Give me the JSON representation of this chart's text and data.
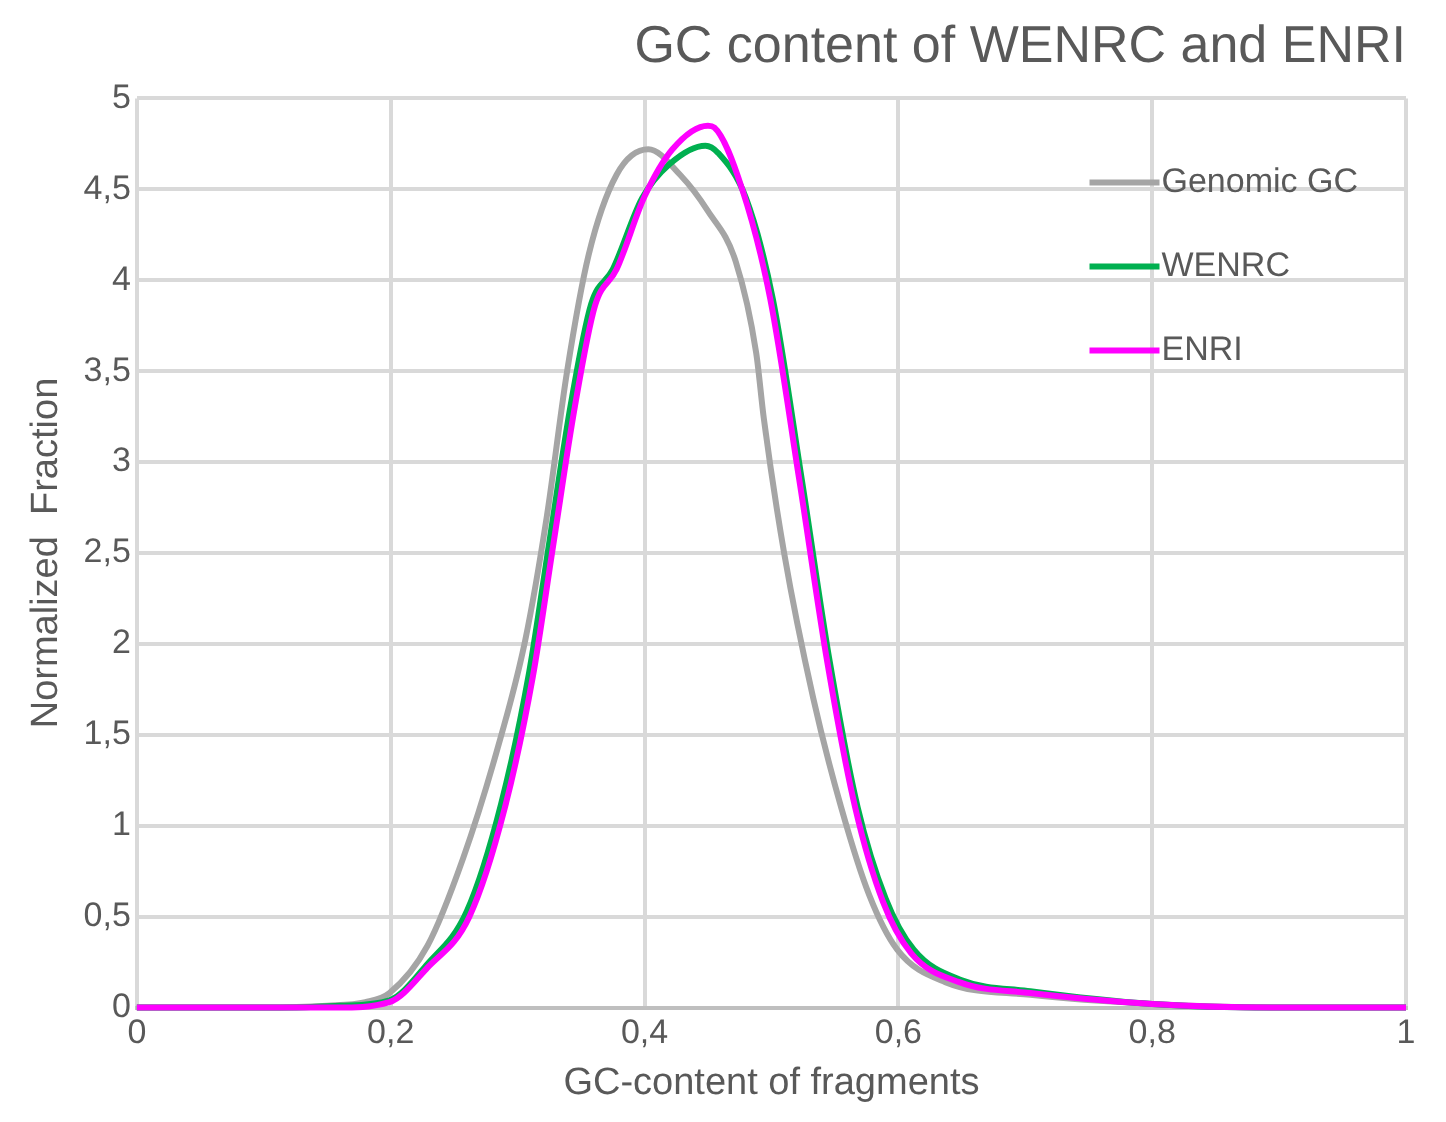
{
  "chart_data": {
    "type": "line",
    "title": "GC content of WENRC and ENRI",
    "xlabel": "GC-content of fragments",
    "ylabel": "Normalized  Fraction",
    "xlim": [
      0,
      1
    ],
    "xticks": [
      0,
      {
        "value": 0.2,
        "label": "0,2"
      },
      {
        "value": 0.4,
        "label": "0,4"
      },
      {
        "value": 0.6,
        "label": "0,6"
      },
      {
        "value": 0.8,
        "label": "0,8"
      },
      1
    ],
    "ylim": [
      0,
      5
    ],
    "yticks": [
      0,
      {
        "value": 0.5,
        "label": "0,5"
      },
      1,
      {
        "value": 1.5,
        "label": "1,5"
      },
      2,
      {
        "value": 2.5,
        "label": "2,5"
      },
      3,
      {
        "value": 3.5,
        "label": "3,5"
      },
      4,
      {
        "value": 4.5,
        "label": "4,5"
      },
      5
    ],
    "grid": true,
    "legend": "top right",
    "marker": "none",
    "line_style": "solid",
    "series": [
      {
        "name": "Genomic GC",
        "color": "#a5a5a5",
        "x": [
          0,
          0.1,
          0.15,
          0.18,
          0.199,
          0.229,
          0.257,
          0.284,
          0.306,
          0.323,
          0.339,
          0.356,
          0.378,
          0.403,
          0.428,
          0.45,
          0.472,
          0.488,
          0.494,
          0.51,
          0.533,
          0.555,
          0.577,
          0.599,
          0.637,
          0.704,
          0.8,
          0.9,
          1
        ],
        "values": [
          0,
          0,
          0.01,
          0.03,
          0.08,
          0.34,
          0.82,
          1.42,
          2.02,
          2.7,
          3.5,
          4.14,
          4.58,
          4.72,
          4.58,
          4.38,
          4.1,
          3.6,
          3.24,
          2.5,
          1.7,
          1.1,
          0.62,
          0.32,
          0.14,
          0.07,
          0.02,
          0,
          0
        ]
      },
      {
        "name": "WENRC",
        "color": "#00b050",
        "x": [
          0,
          0.12,
          0.16,
          0.199,
          0.229,
          0.26,
          0.287,
          0.309,
          0.325,
          0.342,
          0.358,
          0.375,
          0.398,
          0.42,
          0.448,
          0.458,
          0.48,
          0.501,
          0.524,
          0.546,
          0.568,
          0.59,
          0.612,
          0.65,
          0.704,
          0.8,
          0.9,
          1
        ],
        "values": [
          0,
          0,
          0.01,
          0.04,
          0.24,
          0.53,
          1.12,
          1.84,
          2.56,
          3.32,
          3.87,
          4.06,
          4.45,
          4.64,
          4.74,
          4.7,
          4.45,
          3.9,
          2.9,
          1.9,
          1.1,
          0.6,
          0.32,
          0.15,
          0.09,
          0.02,
          0,
          0
        ]
      },
      {
        "name": "ENRI",
        "color": "#ff00ff",
        "x": [
          0,
          0.12,
          0.157,
          0.199,
          0.229,
          0.262,
          0.29,
          0.312,
          0.328,
          0.345,
          0.361,
          0.378,
          0.4,
          0.422,
          0.45,
          0.455,
          0.477,
          0.499,
          0.522,
          0.544,
          0.566,
          0.588,
          0.61,
          0.648,
          0.704,
          0.8,
          0.9,
          1
        ],
        "values": [
          0,
          0,
          0,
          0.03,
          0.22,
          0.5,
          1.1,
          1.82,
          2.54,
          3.3,
          3.86,
          4.06,
          4.46,
          4.72,
          4.85,
          4.84,
          4.5,
          3.9,
          2.9,
          1.9,
          1.1,
          0.58,
          0.3,
          0.14,
          0.08,
          0.02,
          0,
          0
        ]
      }
    ]
  }
}
